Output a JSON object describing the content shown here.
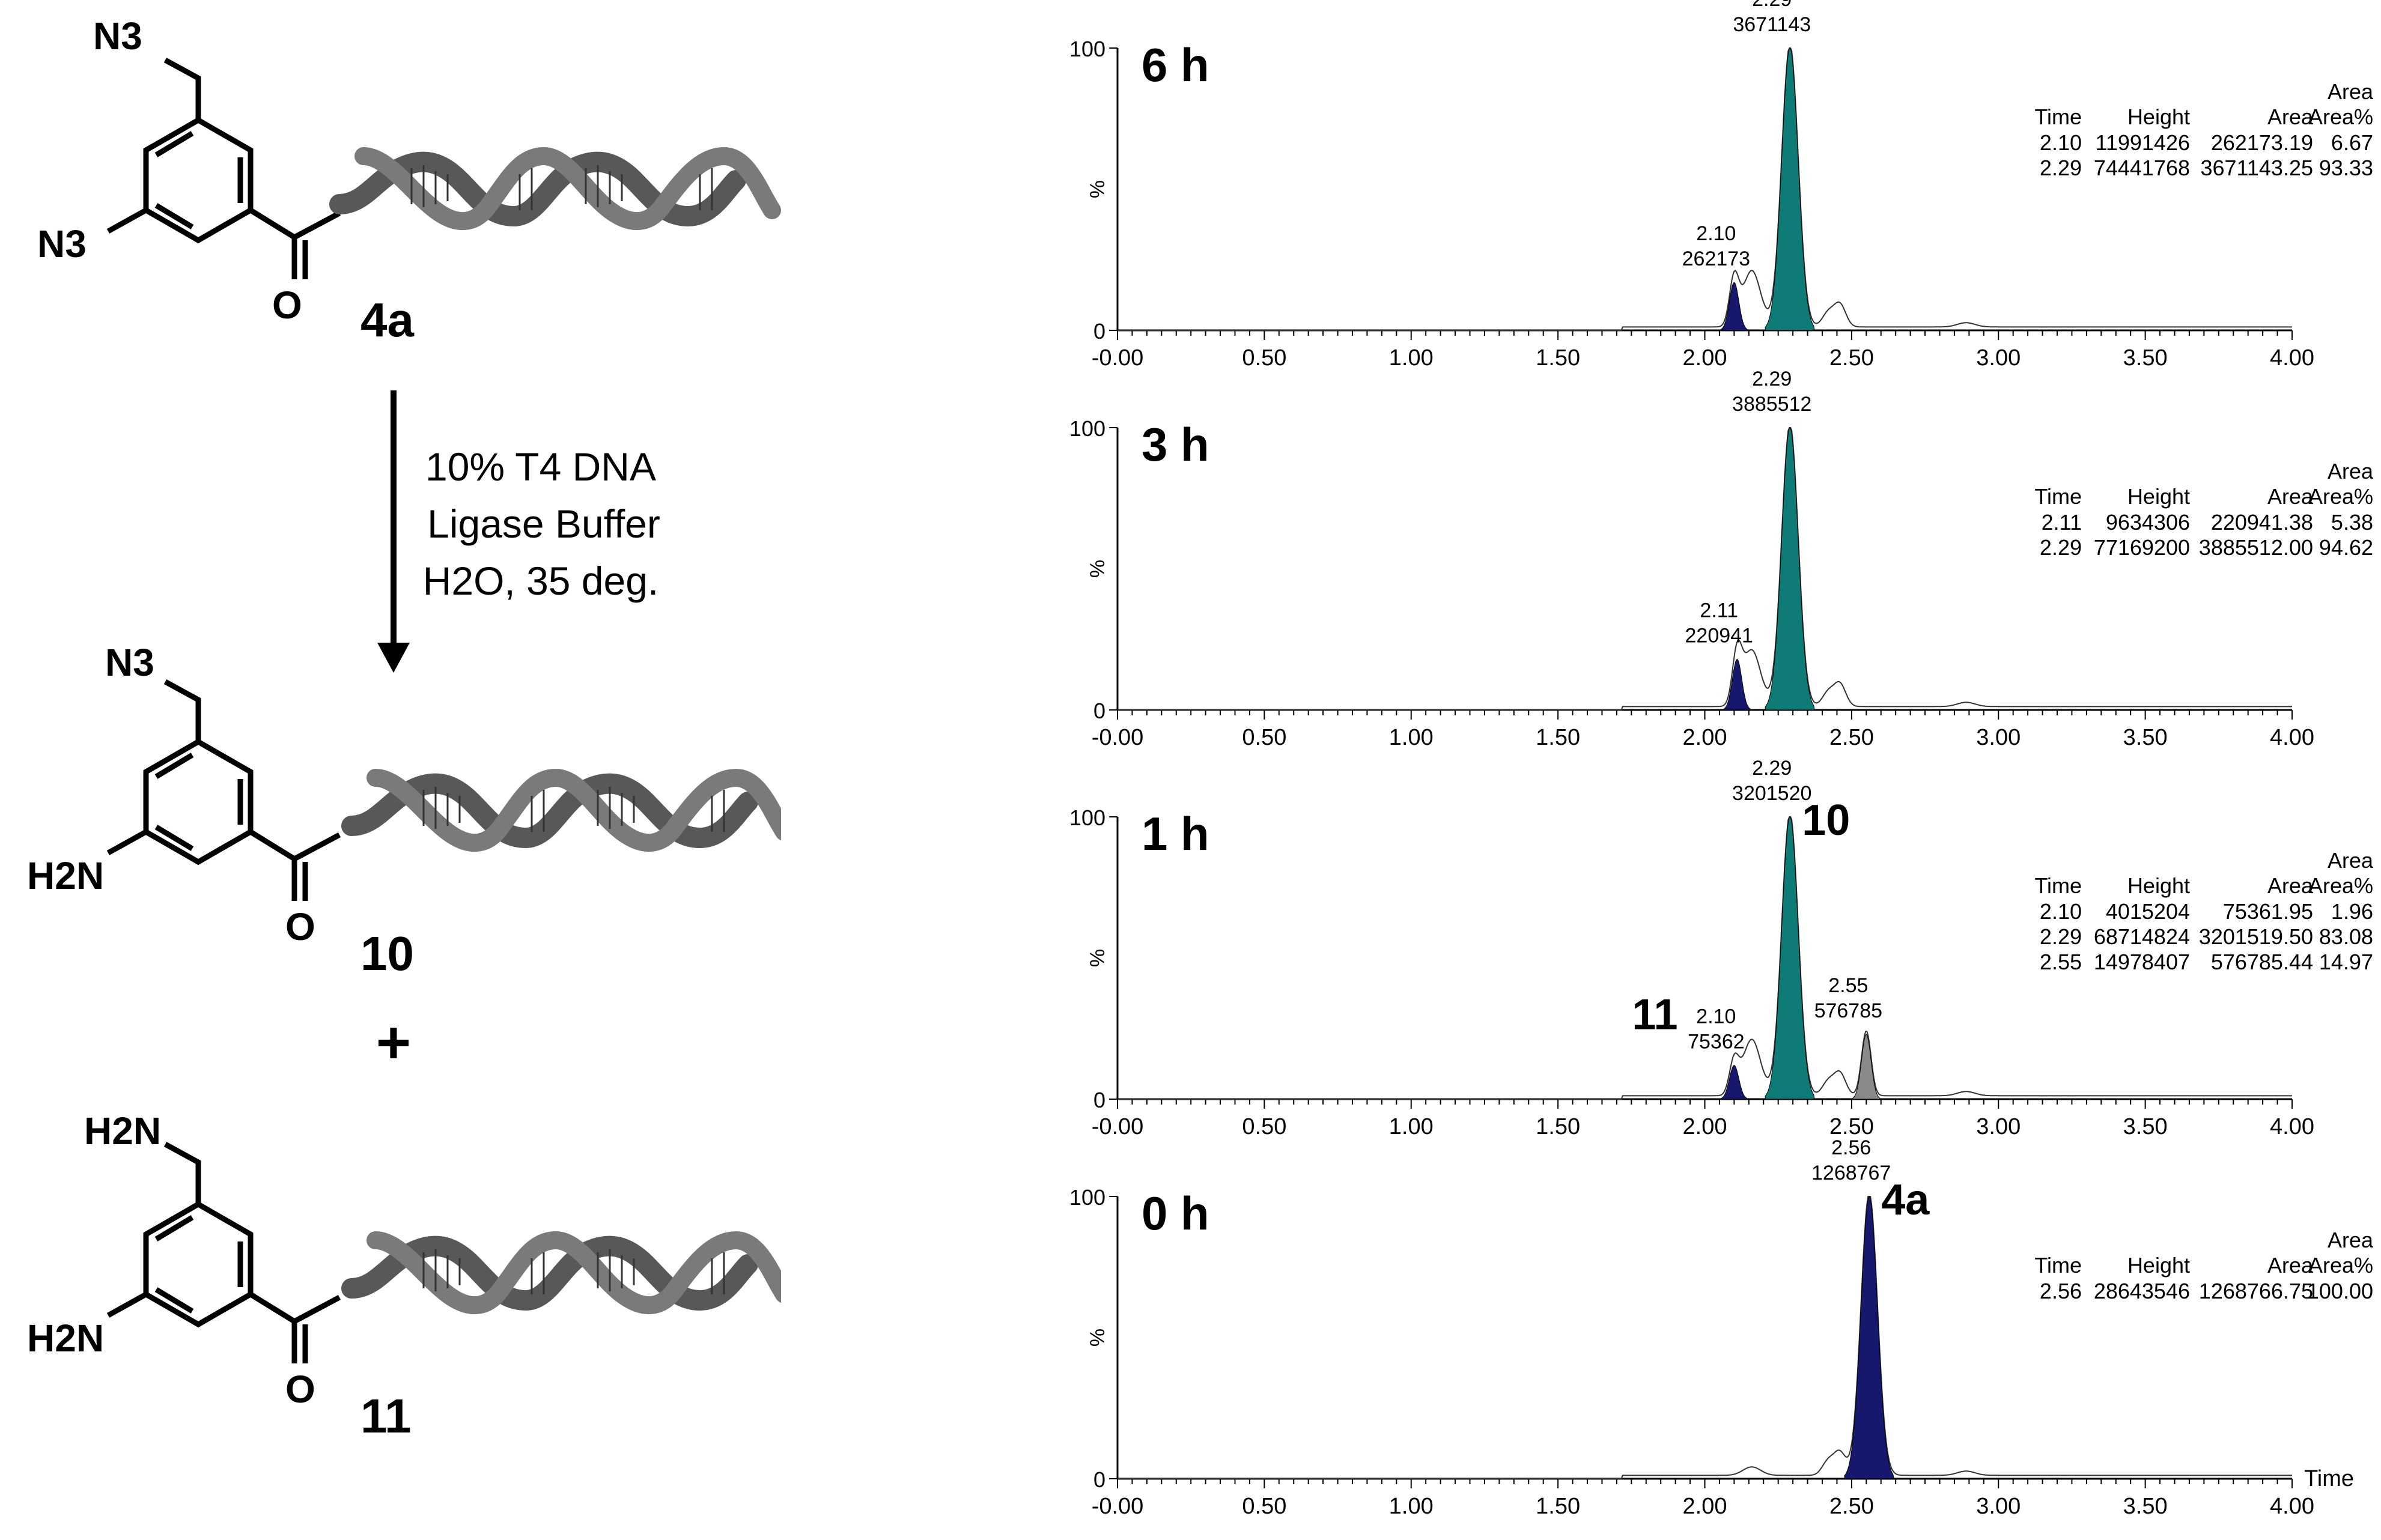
{
  "scheme": {
    "reaction_conditions": [
      "10% T4 DNA",
      "Ligase Buffer",
      "H2O, 35 deg."
    ],
    "plus": "+",
    "compounds": [
      {
        "id": "4a",
        "top_group": "N3",
        "ring_group": "N3",
        "carbonyl": "O"
      },
      {
        "id": "10",
        "top_group": "N3",
        "ring_group": "H2N",
        "carbonyl": "O"
      },
      {
        "id": "11",
        "top_group": "H2N",
        "ring_group": "H2N",
        "carbonyl": "O"
      }
    ]
  },
  "colors": {
    "product_teal": "#0e7b76",
    "reactant_navy": "#16186e",
    "byproduct_gray": "#8a8a8a",
    "dna_gray": "#585858"
  },
  "chart_data": [
    {
      "type": "line",
      "time_label": "6 h",
      "xlim": [
        0,
        4
      ],
      "ylim": [
        0,
        100
      ],
      "x_ticks": [
        "-0.00",
        "0.50",
        "1.00",
        "1.50",
        "2.00",
        "2.50",
        "3.00",
        "3.50",
        "4.00"
      ],
      "y_ticks": [
        "0",
        "100"
      ],
      "ylabel": "%",
      "xlabel": "",
      "peaks": [
        {
          "x": 2.1,
          "y": 17,
          "time": "2.10",
          "area": "262173",
          "fill": "#16186e"
        },
        {
          "x": 2.29,
          "y": 100,
          "time": "2.29",
          "area": "3671143",
          "fill": "#0e7b76"
        }
      ],
      "compound_labels": [],
      "table": {
        "header_top": "Area",
        "columns": [
          "Time",
          "Height",
          "Area",
          "Area%"
        ],
        "rows": [
          [
            "2.10",
            "11991426",
            "262173.19",
            "6.67"
          ],
          [
            "2.29",
            "74441768",
            "3671143.25",
            "93.33"
          ]
        ]
      }
    },
    {
      "type": "line",
      "time_label": "3 h",
      "xlim": [
        0,
        4
      ],
      "ylim": [
        0,
        100
      ],
      "x_ticks": [
        "-0.00",
        "0.50",
        "1.00",
        "1.50",
        "2.00",
        "2.50",
        "3.00",
        "3.50",
        "4.00"
      ],
      "y_ticks": [
        "0",
        "100"
      ],
      "ylabel": "%",
      "xlabel": "",
      "peaks": [
        {
          "x": 2.11,
          "y": 18,
          "time": "2.11",
          "area": "220941",
          "fill": "#16186e"
        },
        {
          "x": 2.29,
          "y": 100,
          "time": "2.29",
          "area": "3885512",
          "fill": "#0e7b76"
        }
      ],
      "compound_labels": [],
      "table": {
        "header_top": "Area",
        "columns": [
          "Time",
          "Height",
          "Area",
          "Area%"
        ],
        "rows": [
          [
            "2.11",
            "9634306",
            "220941.38",
            "5.38"
          ],
          [
            "2.29",
            "77169200",
            "3885512.00",
            "94.62"
          ]
        ]
      }
    },
    {
      "type": "line",
      "time_label": "1 h",
      "xlim": [
        0,
        4
      ],
      "ylim": [
        0,
        100
      ],
      "x_ticks": [
        "-0.00",
        "0.50",
        "1.00",
        "1.50",
        "2.00",
        "2.50",
        "3.00",
        "3.50",
        "4.00"
      ],
      "y_ticks": [
        "0",
        "100"
      ],
      "ylabel": "%",
      "xlabel": "",
      "peaks": [
        {
          "x": 2.1,
          "y": 12,
          "time": "2.10",
          "area": "75362",
          "fill": "#16186e"
        },
        {
          "x": 2.29,
          "y": 100,
          "time": "2.29",
          "area": "3201520",
          "fill": "#0e7b76"
        },
        {
          "x": 2.55,
          "y": 23,
          "time": "2.55",
          "area": "576785",
          "fill": "#8a8a8a"
        }
      ],
      "compound_labels": [
        {
          "text": "10",
          "peak": 1,
          "side": "right"
        },
        {
          "text": "11",
          "peak": 0,
          "side": "left"
        }
      ],
      "table": {
        "header_top": "Area",
        "columns": [
          "Time",
          "Height",
          "Area",
          "Area%"
        ],
        "rows": [
          [
            "2.10",
            "4015204",
            "75361.95",
            "1.96"
          ],
          [
            "2.29",
            "68714824",
            "3201519.50",
            "83.08"
          ],
          [
            "2.55",
            "14978407",
            "576785.44",
            "14.97"
          ]
        ]
      }
    },
    {
      "type": "line",
      "time_label": "0 h",
      "xlim": [
        0,
        4
      ],
      "ylim": [
        0,
        100
      ],
      "x_ticks": [
        "-0.00",
        "0.50",
        "1.00",
        "1.50",
        "2.00",
        "2.50",
        "3.00",
        "3.50",
        "4.00"
      ],
      "y_ticks": [
        "0",
        "100"
      ],
      "ylabel": "%",
      "xlabel": "Time",
      "peaks": [
        {
          "x": 2.56,
          "y": 100,
          "time": "2.56",
          "area": "1268767",
          "fill": "#16186e"
        }
      ],
      "compound_labels": [
        {
          "text": "4a",
          "peak": 0,
          "side": "right"
        }
      ],
      "table": {
        "header_top": "Area",
        "columns": [
          "Time",
          "Height",
          "Area",
          "Area%"
        ],
        "rows": [
          [
            "2.56",
            "28643546",
            "1268766.75",
            "100.00"
          ]
        ]
      }
    }
  ]
}
